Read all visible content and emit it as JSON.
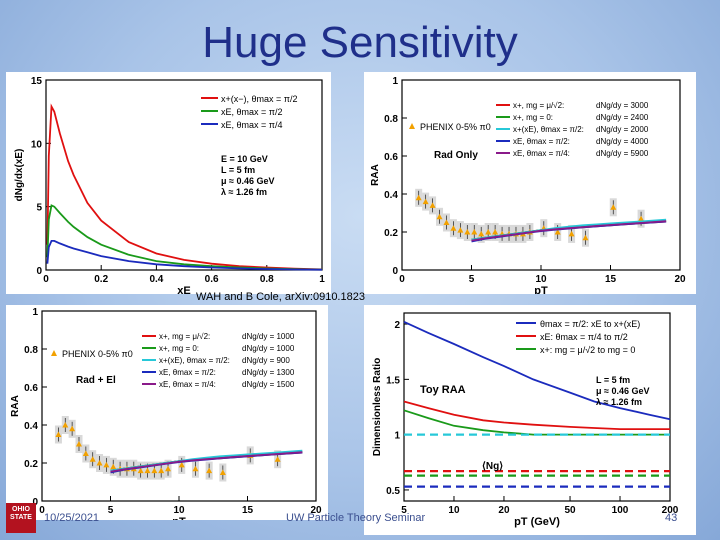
{
  "slide": {
    "title": "Huge Sensitivity",
    "citation": "WAH and B Cole, arXiv:0910.1823",
    "date": "10/25/2021",
    "seminar": "UW Particle Theory Seminar",
    "page": "43",
    "logo": "OHIO STATE"
  },
  "chart_data": [
    {
      "type": "line",
      "id": "panel-tl",
      "ylabel": "dNg/dx(xE)",
      "xlabel": "xE",
      "xlim": [
        0,
        1
      ],
      "ylim": [
        0,
        15
      ],
      "x_ticks": [
        "0",
        "0.2",
        "0.4",
        "0.6",
        "0.8",
        "1"
      ],
      "y_ticks": [
        "0",
        "5",
        "10",
        "15"
      ],
      "legend": [
        "x+(x−), θmax = π/2",
        "xE, θmax = π/2",
        "xE, θmax = π/4"
      ],
      "params": [
        "E = 10 GeV",
        "L = 5 fm",
        "μ ≈ 0.46 GeV",
        "λ ≈ 1.26 fm"
      ],
      "series": [
        {
          "name": "x+(x−), θmax = π/2",
          "color": "#e01010",
          "x": [
            0.005,
            0.01,
            0.02,
            0.03,
            0.05,
            0.08,
            0.1,
            0.15,
            0.2,
            0.3,
            0.4,
            0.5,
            0.6,
            0.7,
            0.8,
            0.9,
            1.0
          ],
          "y": [
            2.0,
            9.0,
            12.9,
            12.5,
            10.8,
            8.6,
            7.5,
            5.3,
            3.9,
            2.2,
            1.3,
            0.8,
            0.5,
            0.3,
            0.2,
            0.1,
            0.05
          ]
        },
        {
          "name": "xE, θmax = π/2",
          "color": "#1a9a1a",
          "x": [
            0.005,
            0.01,
            0.02,
            0.03,
            0.05,
            0.08,
            0.1,
            0.15,
            0.2,
            0.3,
            0.4,
            0.5,
            0.6,
            0.7,
            0.8,
            0.9,
            1.0
          ],
          "y": [
            1.0,
            4.0,
            5.1,
            5.0,
            4.5,
            3.8,
            3.4,
            2.6,
            2.0,
            1.2,
            0.7,
            0.45,
            0.3,
            0.2,
            0.12,
            0.06,
            0.03
          ]
        },
        {
          "name": "xE, θmax = π/4",
          "color": "#1b2bbd",
          "x": [
            0.005,
            0.01,
            0.02,
            0.03,
            0.05,
            0.08,
            0.1,
            0.15,
            0.2,
            0.3,
            0.4,
            0.5,
            0.6,
            0.7,
            0.8,
            0.9,
            1.0
          ],
          "y": [
            0.5,
            1.8,
            2.3,
            2.3,
            2.1,
            1.85,
            1.7,
            1.4,
            1.1,
            0.7,
            0.45,
            0.3,
            0.2,
            0.13,
            0.08,
            0.04,
            0.02
          ]
        }
      ]
    },
    {
      "type": "line",
      "id": "panel-tr",
      "ylabel": "RAA",
      "xlabel": "pT",
      "xlim": [
        0,
        20
      ],
      "ylim": [
        0,
        1
      ],
      "x_ticks": [
        "0",
        "5",
        "10",
        "15",
        "20"
      ],
      "y_ticks": [
        "0",
        "0.2",
        "0.4",
        "0.6",
        "0.8",
        "1"
      ],
      "data_label": "PHENIX 0-5% π0",
      "mode_label": "Rad Only",
      "legend": [
        {
          "label": "x+, mg = μ/√2:",
          "value": "dNg/dy = 3000",
          "color": "#e01010"
        },
        {
          "label": "x+, mg = 0:",
          "value": "dNg/dy = 2400",
          "color": "#1a9a1a"
        },
        {
          "label": "x+(xE), θmax = π/2:",
          "value": "dNg/dy = 2000",
          "color": "#27c8d8"
        },
        {
          "label": "xE, θmax = π/2:",
          "value": "dNg/dy = 4000",
          "color": "#1b2bbd"
        },
        {
          "label": "xE, θmax = π/4:",
          "value": "dNg/dy = 5900",
          "color": "#8a1a8a"
        }
      ],
      "points": {
        "x": [
          1.2,
          1.7,
          2.2,
          2.7,
          3.2,
          3.7,
          4.2,
          4.7,
          5.2,
          5.7,
          6.2,
          6.7,
          7.2,
          7.7,
          8.2,
          8.7,
          9.2,
          10.2,
          11.2,
          12.2,
          13.2,
          15.2,
          17.2
        ],
        "y": [
          0.38,
          0.36,
          0.34,
          0.28,
          0.25,
          0.22,
          0.21,
          0.2,
          0.2,
          0.19,
          0.2,
          0.2,
          0.19,
          0.19,
          0.19,
          0.19,
          0.2,
          0.22,
          0.2,
          0.19,
          0.17,
          0.33,
          0.27
        ]
      },
      "curve_x": [
        5,
        6,
        7,
        8,
        9,
        10,
        11,
        12,
        13,
        14,
        15,
        16,
        17,
        18,
        19
      ],
      "series": [
        {
          "name": "x+, mg = μ/√2",
          "color": "#e01010",
          "y": [
            0.16,
            0.17,
            0.18,
            0.19,
            0.2,
            0.21,
            0.215,
            0.22,
            0.225,
            0.23,
            0.235,
            0.24,
            0.245,
            0.25,
            0.255
          ]
        },
        {
          "name": "x+, mg = 0",
          "color": "#1a9a1a",
          "y": [
            0.16,
            0.17,
            0.18,
            0.19,
            0.2,
            0.21,
            0.218,
            0.225,
            0.23,
            0.235,
            0.24,
            0.245,
            0.25,
            0.255,
            0.26
          ]
        },
        {
          "name": "x+(xE), θmax = π/2",
          "color": "#27c8d8",
          "y": [
            0.16,
            0.17,
            0.18,
            0.19,
            0.2,
            0.21,
            0.22,
            0.228,
            0.235,
            0.24,
            0.245,
            0.25,
            0.255,
            0.26,
            0.265
          ]
        },
        {
          "name": "xE, θmax = π/2",
          "color": "#1b2bbd",
          "y": [
            0.15,
            0.165,
            0.175,
            0.185,
            0.195,
            0.205,
            0.212,
            0.218,
            0.224,
            0.23,
            0.235,
            0.24,
            0.245,
            0.25,
            0.255
          ]
        },
        {
          "name": "xE, θmax = π/4",
          "color": "#8a1a8a",
          "y": [
            0.155,
            0.167,
            0.177,
            0.187,
            0.197,
            0.207,
            0.214,
            0.22,
            0.226,
            0.232,
            0.237,
            0.242,
            0.247,
            0.252,
            0.257
          ]
        }
      ]
    },
    {
      "type": "line",
      "id": "panel-bl",
      "ylabel": "RAA",
      "xlabel": "pT",
      "xlim": [
        0,
        20
      ],
      "ylim": [
        0,
        1
      ],
      "x_ticks": [
        "0",
        "5",
        "10",
        "15",
        "20"
      ],
      "y_ticks": [
        "0",
        "0.2",
        "0.4",
        "0.6",
        "0.8",
        "1"
      ],
      "data_label": "PHENIX 0-5% π0",
      "mode_label": "Rad + El",
      "legend": [
        {
          "label": "x+, mg = μ/√2:",
          "value": "dNg/dy = 1000",
          "color": "#e01010"
        },
        {
          "label": "x+, mg = 0:",
          "value": "dNg/dy = 1000",
          "color": "#1a9a1a"
        },
        {
          "label": "x+(xE), θmax = π/2:",
          "value": "dNg/dy = 900",
          "color": "#27c8d8"
        },
        {
          "label": "xE, θmax = π/2:",
          "value": "dNg/dy = 1300",
          "color": "#1b2bbd"
        },
        {
          "label": "xE, θmax = π/4:",
          "value": "dNg/dy = 1500",
          "color": "#8a1a8a"
        }
      ],
      "points": {
        "x": [
          1.2,
          1.7,
          2.2,
          2.7,
          3.2,
          3.7,
          4.2,
          4.7,
          5.2,
          5.7,
          6.2,
          6.7,
          7.2,
          7.7,
          8.2,
          8.7,
          9.2,
          10.2,
          11.2,
          12.2,
          13.2,
          15.2,
          17.2
        ],
        "y": [
          0.35,
          0.4,
          0.38,
          0.3,
          0.25,
          0.22,
          0.2,
          0.19,
          0.18,
          0.17,
          0.17,
          0.17,
          0.16,
          0.16,
          0.16,
          0.16,
          0.17,
          0.19,
          0.17,
          0.16,
          0.15,
          0.24,
          0.22
        ]
      },
      "curve_x": [
        5,
        6,
        7,
        8,
        9,
        10,
        11,
        12,
        13,
        14,
        15,
        16,
        17,
        18,
        19
      ],
      "series": [
        {
          "name": "x+, mg = μ/√2",
          "color": "#e01010",
          "y": [
            0.16,
            0.17,
            0.18,
            0.19,
            0.2,
            0.21,
            0.215,
            0.22,
            0.225,
            0.23,
            0.235,
            0.24,
            0.245,
            0.25,
            0.255
          ]
        },
        {
          "name": "x+, mg = 0",
          "color": "#1a9a1a",
          "y": [
            0.16,
            0.17,
            0.18,
            0.19,
            0.2,
            0.21,
            0.218,
            0.225,
            0.23,
            0.235,
            0.24,
            0.245,
            0.25,
            0.255,
            0.26
          ]
        },
        {
          "name": "x+(xE), θmax = π/2",
          "color": "#27c8d8",
          "y": [
            0.16,
            0.17,
            0.18,
            0.19,
            0.2,
            0.21,
            0.22,
            0.228,
            0.235,
            0.24,
            0.245,
            0.25,
            0.255,
            0.26,
            0.265
          ]
        },
        {
          "name": "xE, θmax = π/2",
          "color": "#1b2bbd",
          "y": [
            0.15,
            0.165,
            0.175,
            0.185,
            0.195,
            0.205,
            0.212,
            0.218,
            0.224,
            0.23,
            0.235,
            0.24,
            0.245,
            0.25,
            0.255
          ]
        },
        {
          "name": "xE, θmax = π/4",
          "color": "#8a1a8a",
          "y": [
            0.155,
            0.167,
            0.177,
            0.187,
            0.197,
            0.207,
            0.214,
            0.22,
            0.226,
            0.232,
            0.237,
            0.242,
            0.247,
            0.252,
            0.257
          ]
        }
      ]
    },
    {
      "type": "line",
      "id": "panel-br",
      "ylabel": "Dimensionless Ratio",
      "xlabel": "pT (GeV)",
      "xlog": true,
      "xlim": [
        5,
        200
      ],
      "ylim": [
        0.4,
        2.1
      ],
      "x_ticks": [
        "5",
        "10",
        "20",
        "50",
        "100",
        "200"
      ],
      "y_ticks": [
        "0.5",
        "1",
        "1.5",
        "2"
      ],
      "curve_label": "Toy RAA",
      "ng_label": "⟨Ng⟩",
      "legend": [
        {
          "label": "θmax = π/2: xE to x+(xE)",
          "color": "#1b2bbd"
        },
        {
          "label": "xE: θmax = π/4 to π/2",
          "color": "#e01010"
        },
        {
          "label": "x+: mg = μ/√2 to mg = 0",
          "color": "#1a9a1a"
        }
      ],
      "params": [
        "L = 5 fm",
        "μ ≈ 0.46 GeV",
        "λ ≈ 1.26 fm"
      ],
      "x": [
        5,
        7,
        10,
        15,
        20,
        30,
        50,
        70,
        100,
        150,
        200
      ],
      "series": [
        {
          "name": "θmax = π/2: xE to x+(xE)",
          "color": "#1b2bbd",
          "style": "solid",
          "y": [
            2.02,
            1.92,
            1.82,
            1.7,
            1.62,
            1.5,
            1.38,
            1.3,
            1.24,
            1.18,
            1.14
          ]
        },
        {
          "name": "xE: θmax = π/4 to π/2",
          "color": "#e01010",
          "style": "solid",
          "y": [
            1.3,
            1.24,
            1.18,
            1.13,
            1.11,
            1.09,
            1.07,
            1.06,
            1.05,
            1.05,
            1.05
          ]
        },
        {
          "name": "x+: mg = μ/√2 to mg = 0",
          "color": "#1a9a1a",
          "style": "solid",
          "y": [
            1.22,
            1.15,
            1.08,
            1.04,
            1.02,
            1.0,
            1.0,
            1.0,
            1.0,
            1.0,
            1.0
          ]
        },
        {
          "name": "θmax = π/2: xE to x+(xE)",
          "color": "#1b2bbd",
          "style": "dashed",
          "y": [
            0.53,
            0.53,
            0.53,
            0.53,
            0.53,
            0.53,
            0.53,
            0.53,
            0.53,
            0.53,
            0.53
          ]
        },
        {
          "name": "xE: θmax = π/4 to π/2",
          "color": "#e01010",
          "style": "dashed",
          "y": [
            0.67,
            0.67,
            0.67,
            0.67,
            0.67,
            0.67,
            0.67,
            0.67,
            0.67,
            0.67,
            0.67
          ]
        },
        {
          "name": "x+: mg = μ/√2 to mg = 0",
          "color": "#1a9a1a",
          "style": "dashed",
          "y": [
            0.63,
            0.63,
            0.63,
            0.63,
            0.63,
            0.63,
            0.63,
            0.63,
            0.63,
            0.63,
            0.63
          ]
        },
        {
          "name": "",
          "color": "#27c8d8",
          "style": "dashed",
          "y": [
            1.0,
            1.0,
            1.0,
            1.0,
            1.0,
            1.0,
            1.0,
            1.0,
            1.0,
            1.0,
            1.0
          ]
        }
      ]
    }
  ]
}
